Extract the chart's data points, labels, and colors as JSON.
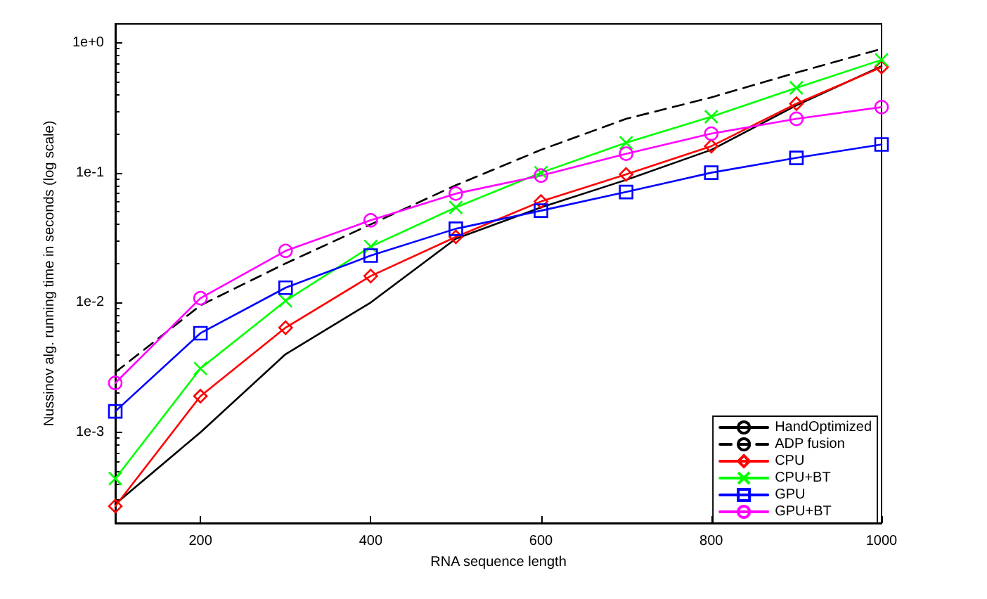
{
  "chart_data": {
    "type": "line",
    "xlabel": "RNA sequence length",
    "ylabel": "Nussinov alg. running time in seconds (log scale)",
    "x": [
      100,
      200,
      300,
      400,
      500,
      600,
      700,
      800,
      900,
      1000
    ],
    "series": [
      {
        "name": "HandOptimized",
        "color": "#000000",
        "marker": "none",
        "line_style": "solid",
        "values": [
          0.00028,
          0.001,
          0.004,
          0.01,
          0.031,
          0.054,
          0.088,
          0.15,
          0.33,
          0.66
        ]
      },
      {
        "name": "ADP fusion",
        "color": "#000000",
        "marker": "none",
        "line_style": "dashed",
        "values": [
          0.0029,
          0.0095,
          0.02,
          0.04,
          0.08,
          0.15,
          0.26,
          0.38,
          0.59,
          0.9
        ]
      },
      {
        "name": "CPU",
        "color": "#ff0000",
        "marker": "diamond",
        "line_style": "solid",
        "values": [
          0.00027,
          0.0019,
          0.0064,
          0.016,
          0.032,
          0.06,
          0.097,
          0.16,
          0.34,
          0.65
        ]
      },
      {
        "name": "CPU+BT",
        "color": "#00ff00",
        "marker": "cross",
        "line_style": "solid",
        "values": [
          0.00044,
          0.0031,
          0.0103,
          0.027,
          0.054,
          0.1,
          0.17,
          0.27,
          0.45,
          0.74
        ]
      },
      {
        "name": "GPU",
        "color": "#0000ff",
        "marker": "square",
        "line_style": "solid",
        "values": [
          0.00145,
          0.0058,
          0.013,
          0.023,
          0.037,
          0.051,
          0.071,
          0.1,
          0.13,
          0.165
        ]
      },
      {
        "name": "GPU+BT",
        "color": "#ff00ff",
        "marker": "circle",
        "line_style": "solid",
        "values": [
          0.0024,
          0.0108,
          0.025,
          0.043,
          0.069,
          0.095,
          0.14,
          0.2,
          0.26,
          0.32
        ]
      }
    ],
    "xlim": [
      100,
      1000
    ],
    "xticks": [
      200,
      400,
      600,
      800,
      1000
    ],
    "log": "y",
    "ylim": [
      0.0002,
      1.4
    ],
    "yticks": [
      {
        "value": 0.001,
        "label": "1e-3"
      },
      {
        "value": 0.01,
        "label": "1e-2"
      },
      {
        "value": 0.1,
        "label": "1e-1"
      },
      {
        "value": 1,
        "label": "1e+0"
      }
    ],
    "grid": false,
    "legend": "bottom right"
  }
}
